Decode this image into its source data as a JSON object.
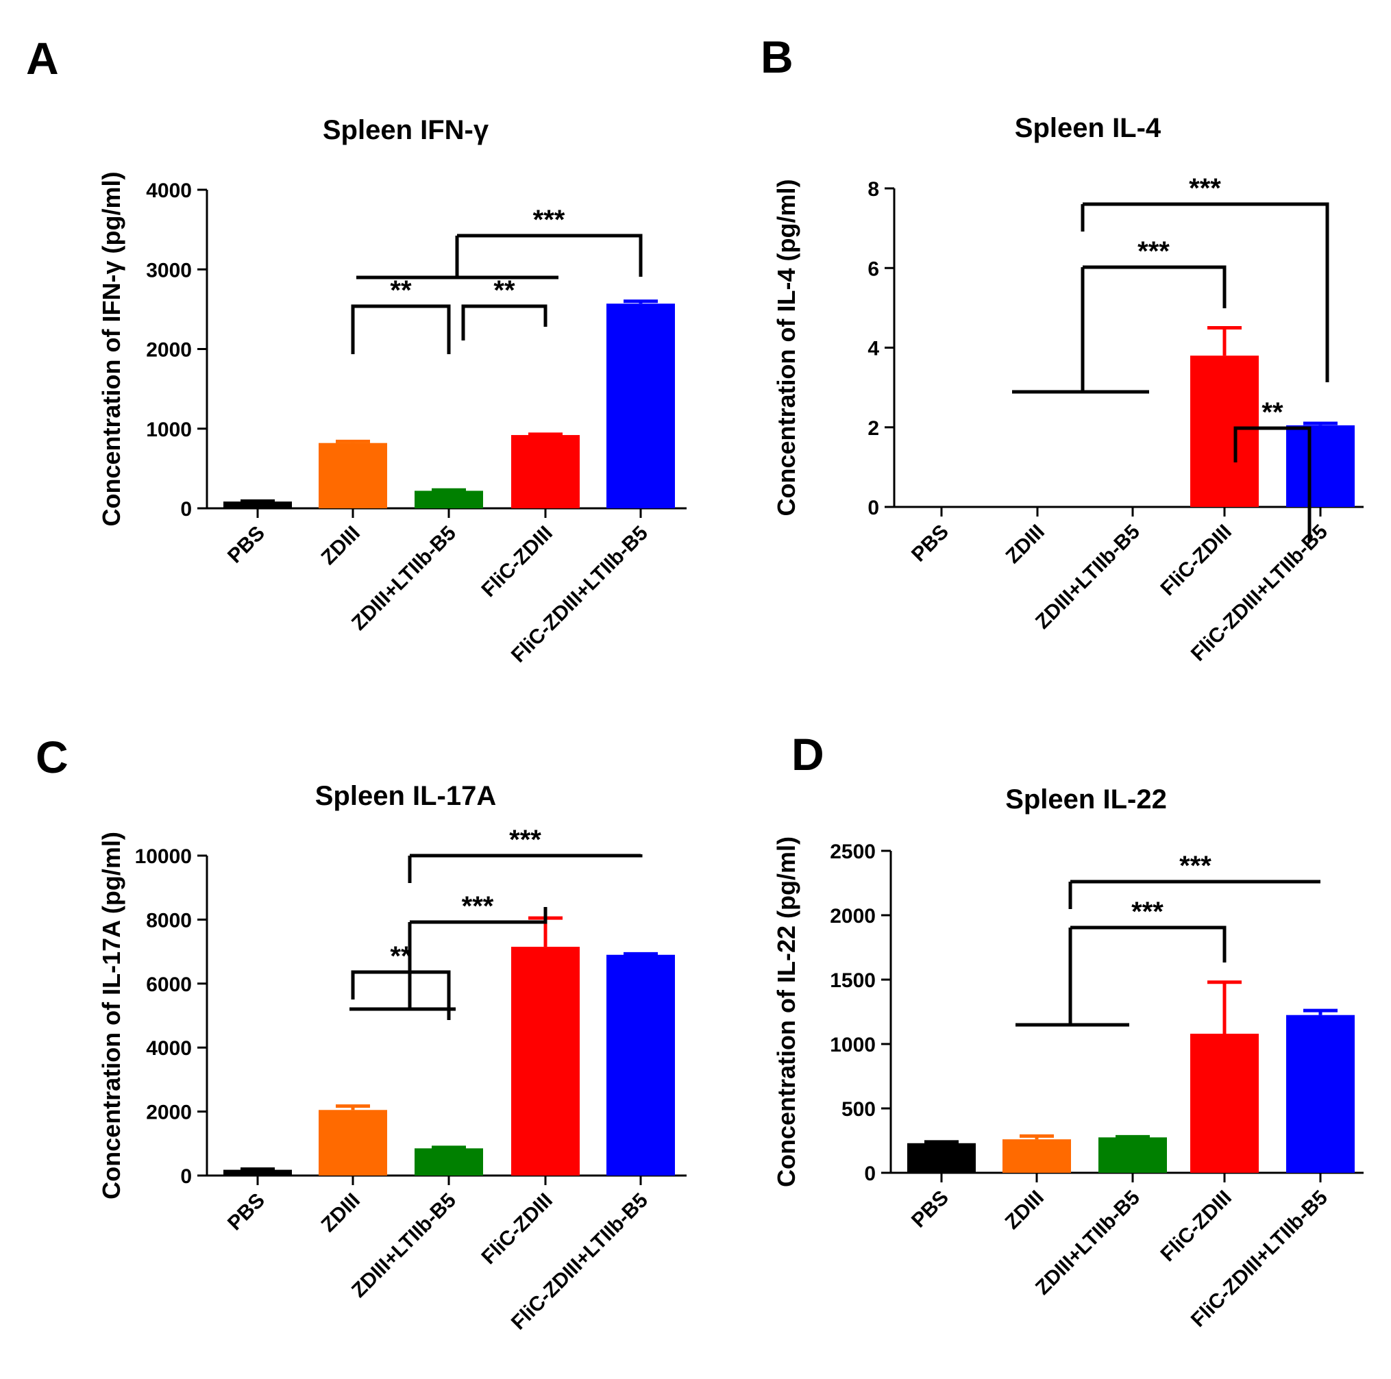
{
  "chart_data": [
    {
      "panel": "A",
      "type": "bar",
      "title": "Spleen IFN-γ",
      "ylabel": "Concentration of IFN-γ (pg/ml)",
      "xlabel": "",
      "categories": [
        "PBS",
        "ZDIII",
        "ZDIII+LTIIb-B5",
        "FliC-ZDIII",
        "FliC-ZDIII+LTIIb-B5"
      ],
      "values": [
        85,
        820,
        220,
        920,
        2570
      ],
      "errors": [
        5,
        20,
        10,
        10,
        30
      ],
      "colors": [
        "#000000",
        "#ff6a00",
        "#008000",
        "#ff0000",
        "#0000ff"
      ],
      "ylim": [
        0,
        4000
      ],
      "yticks": [
        0,
        1000,
        2000,
        3000,
        4000
      ],
      "significance": [
        {
          "label": "**",
          "from": 1,
          "to": 2
        },
        {
          "label": "**",
          "from": 2,
          "to": 3
        },
        {
          "label": "***",
          "from": [
            0,
            3
          ],
          "to": 4
        }
      ]
    },
    {
      "panel": "B",
      "type": "bar",
      "title": "Spleen IL-4",
      "ylabel": "Concentration of IL-4 (pg/ml)",
      "xlabel": "",
      "categories": [
        "PBS",
        "ZDIII",
        "ZDIII+LTIIb-B5",
        "FliC-ZDIII",
        "FliC-ZDIII+LTIIb-B5"
      ],
      "values": [
        0,
        0,
        0,
        3.8,
        2.05
      ],
      "errors": [
        0,
        0,
        0,
        0.7,
        0.05
      ],
      "colors": [
        "#000000",
        "#ff6a00",
        "#008000",
        "#ff0000",
        "#0000ff"
      ],
      "ylim": [
        0,
        8
      ],
      "yticks": [
        0,
        2,
        4,
        6,
        8
      ],
      "significance": [
        {
          "label": "***",
          "from": [
            1,
            2
          ],
          "to": 3
        },
        {
          "label": "**",
          "from": 3,
          "to": 4
        },
        {
          "label": "***",
          "from": [
            1,
            2
          ],
          "to": 4
        }
      ]
    },
    {
      "panel": "C",
      "type": "bar",
      "title": "Spleen IL-17A",
      "ylabel": "Concentration of IL-17A (pg/ml)",
      "xlabel": "",
      "categories": [
        "PBS",
        "ZDIII",
        "ZDIII+LTIIb-B5",
        "FliC-ZDIII",
        "FliC-ZDIII+LTIIb-B5"
      ],
      "values": [
        180,
        2050,
        850,
        7150,
        6900
      ],
      "errors": [
        20,
        120,
        30,
        900,
        30
      ],
      "colors": [
        "#000000",
        "#ff6a00",
        "#008000",
        "#ff0000",
        "#0000ff"
      ],
      "ylim": [
        0,
        10000
      ],
      "yticks": [
        0,
        2000,
        4000,
        6000,
        8000,
        10000
      ],
      "significance": [
        {
          "label": "**",
          "from": 1,
          "to": 2
        },
        {
          "label": "***",
          "from": [
            1,
            2
          ],
          "to": 3
        },
        {
          "label": "***",
          "from": [
            1,
            2
          ],
          "to": 4
        }
      ]
    },
    {
      "panel": "D",
      "type": "bar",
      "title": "Spleen IL-22",
      "ylabel": "Concentration of IL-22 (pg/ml)",
      "xlabel": "",
      "categories": [
        "PBS",
        "ZDIII",
        "ZDIII+LTIIb-B5",
        "FliC-ZDIII",
        "FliC-ZDIII+LTIIb-B5"
      ],
      "values": [
        230,
        260,
        275,
        1080,
        1225
      ],
      "errors": [
        10,
        25,
        5,
        400,
        35
      ],
      "colors": [
        "#000000",
        "#ff6a00",
        "#008000",
        "#ff0000",
        "#0000ff"
      ],
      "ylim": [
        0,
        2500
      ],
      "yticks": [
        0,
        500,
        1000,
        1500,
        2000,
        2500
      ],
      "significance": [
        {
          "label": "***",
          "from": [
            1,
            2
          ],
          "to": 3
        },
        {
          "label": "***",
          "from": [
            1,
            2
          ],
          "to": 4
        }
      ]
    }
  ]
}
